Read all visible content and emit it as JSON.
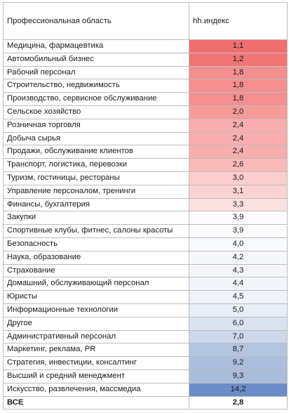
{
  "table": {
    "headers": [
      "Профессиональная область",
      "hh.индекс"
    ],
    "rows": [
      {
        "area": "Медицина, фармацевтика",
        "index": "1,1",
        "color": "#ef6f6f"
      },
      {
        "area": "Автомобильный бизнес",
        "index": "1,2",
        "color": "#f07575"
      },
      {
        "area": "Рабочий персонал",
        "index": "1,8",
        "color": "#f48f8f"
      },
      {
        "area": "Строительство, недвижимость",
        "index": "1,8",
        "color": "#f48f8f"
      },
      {
        "area": "Производство, сервисное обслуживание",
        "index": "1,8",
        "color": "#f48f8f"
      },
      {
        "area": "Сельское хозяйство",
        "index": "2,0",
        "color": "#f69a9a"
      },
      {
        "area": "Розничная торговля",
        "index": "2,4",
        "color": "#f8aeae"
      },
      {
        "area": "Добыча сырья",
        "index": "2,4",
        "color": "#f8aeae"
      },
      {
        "area": "Продажи, обслуживание клиентов",
        "index": "2,4",
        "color": "#f8aeae"
      },
      {
        "area": "Транспорт, логистика, перевозки",
        "index": "2,6",
        "color": "#f9baba"
      },
      {
        "area": "Туризм, гостиницы, рестораны",
        "index": "3,0",
        "color": "#fbcdcd"
      },
      {
        "area": "Управление персоналом, тренинги",
        "index": "3,1",
        "color": "#fcd3d3"
      },
      {
        "area": "Финансы, бухгалтерия",
        "index": "3,3",
        "color": "#fde0e0"
      },
      {
        "area": "Закупки",
        "index": "3,9",
        "color": "#fbfbfd"
      },
      {
        "area": "Спортивные клубы, фитнес, салоны красоты",
        "index": "3,9",
        "color": "#fbfbfd"
      },
      {
        "area": "Безопасность",
        "index": "4,0",
        "color": "#f8f9fc"
      },
      {
        "area": "Наука, образование",
        "index": "4,2",
        "color": "#f5f7fb"
      },
      {
        "area": "Страхование",
        "index": "4,3",
        "color": "#f3f5fa"
      },
      {
        "area": "Домашний, обслуживающий персонал",
        "index": "4,4",
        "color": "#f1f4f9"
      },
      {
        "area": "Юристы",
        "index": "4,5",
        "color": "#eff2f8"
      },
      {
        "area": "Информационные технологии",
        "index": "5,0",
        "color": "#e8edf6"
      },
      {
        "area": "Другое",
        "index": "6,0",
        "color": "#dae2f0"
      },
      {
        "area": "Административный персонал",
        "index": "7,0",
        "color": "#ccd7ea"
      },
      {
        "area": "Маркетинг, реклама, PR",
        "index": "8,7",
        "color": "#b3c4e0"
      },
      {
        "area": "Стратегия, инвестиции, консалтинг",
        "index": "9,2",
        "color": "#abbddc"
      },
      {
        "area": "Высший и средний менеджмент",
        "index": "9,3",
        "color": "#a9bcdc"
      },
      {
        "area": "Искусство, развлечения, массмедиа",
        "index": "14,2",
        "color": "#6b8cc6"
      }
    ],
    "total": {
      "area": "ВСЕ",
      "index": "2,8"
    }
  }
}
